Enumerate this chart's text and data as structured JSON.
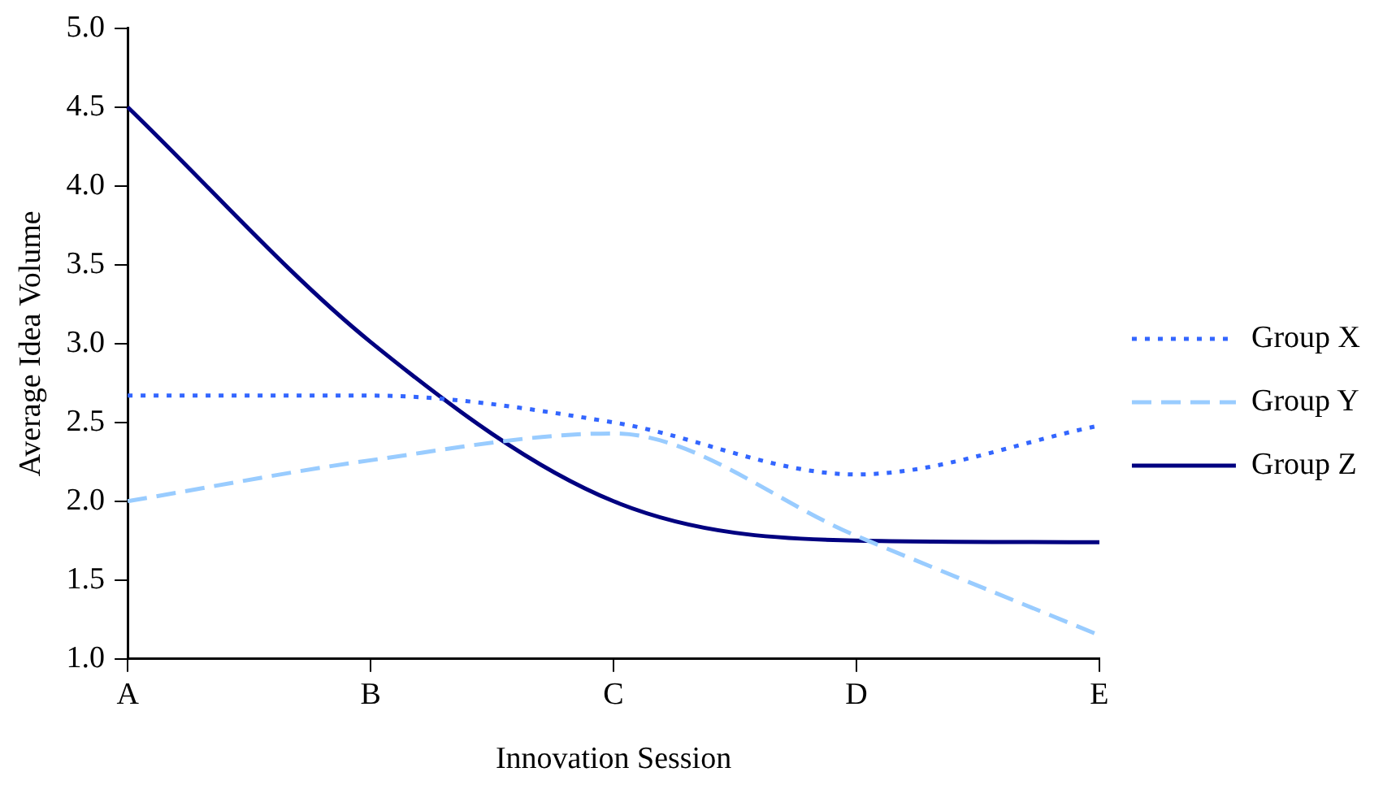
{
  "chart_data": {
    "type": "line",
    "xlabel": "Innovation Session",
    "ylabel": "Average Idea Volume",
    "categories": [
      "A",
      "B",
      "C",
      "D",
      "E"
    ],
    "series": [
      {
        "name": "Group X",
        "color": "#3366ff",
        "line_style": "dotted",
        "values": [
          2.67,
          2.67,
          2.5,
          2.17,
          2.48
        ]
      },
      {
        "name": "Group Y",
        "color": "#99ccff",
        "line_style": "dashed",
        "values": [
          2.0,
          2.26,
          2.43,
          1.78,
          1.15
        ]
      },
      {
        "name": "Group Z",
        "color": "#000080",
        "line_style": "solid",
        "values": [
          4.5,
          3.01,
          2.0,
          1.75,
          1.74
        ]
      }
    ],
    "ylim": [
      1,
      5
    ],
    "yticks": [
      {
        "value": 1,
        "label": "1.0"
      },
      {
        "value": 1.5,
        "label": "1.5"
      },
      {
        "value": 2,
        "label": "2.0"
      },
      {
        "value": 2.5,
        "label": "2.5"
      },
      {
        "value": 3,
        "label": "3.0"
      },
      {
        "value": 3.5,
        "label": "3.5"
      },
      {
        "value": 4,
        "label": "4.0"
      },
      {
        "value": 4.5,
        "label": "4.5"
      },
      {
        "value": 5,
        "label": "5.0"
      }
    ],
    "grid": false,
    "legend": "right",
    "marker": "none"
  }
}
